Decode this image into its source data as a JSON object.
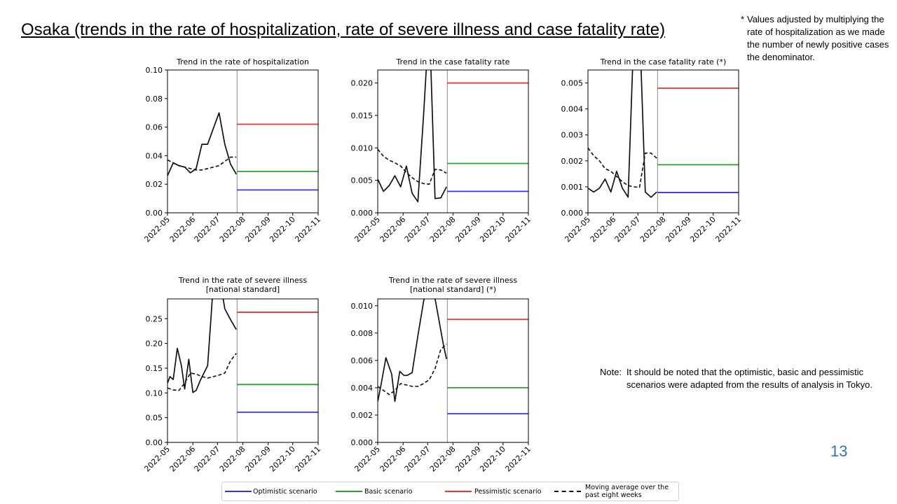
{
  "title": "Osaka (trends in the rate of hospitalization, rate of severe illness and case fatality rate)",
  "footnote": {
    "marker": "*",
    "text": "Values adjusted by multiplying the rate of hospitalization as we made the number of newly positive cases the denominator."
  },
  "note": {
    "label": "Note:",
    "text": "It should be noted that the optimistic, basic and pessimistic scenarios were adapted from the results of analysis in Tokyo."
  },
  "page_number": "13",
  "colors": {
    "optimistic": "#3333ee",
    "basic": "#2ca02c",
    "pessimistic": "#ee3333",
    "actual": "#111111",
    "moving_average": "#111111",
    "accent": "#2e75b6"
  },
  "legend": [
    {
      "key": "optimistic",
      "label": "Optimistic scenario",
      "style": "solid"
    },
    {
      "key": "basic",
      "label": "Basic scenario",
      "style": "solid"
    },
    {
      "key": "pessimistic",
      "label": "Pessimistic scenario",
      "style": "solid"
    },
    {
      "key": "moving_average",
      "label": "Moving average over the past eight weeks",
      "style": "dashed"
    }
  ],
  "chart_data": [
    {
      "type": "line",
      "title": [
        "Trend in the rate of hospitalization"
      ],
      "x_tick_labels": [
        "2022-05",
        "2022-06",
        "2022-07",
        "2022-08",
        "2022-09",
        "2022-10",
        "2022-11"
      ],
      "x_range": [
        "2022-05-01",
        "2022-11-01"
      ],
      "divider_date": "2022-07-25",
      "ylim": [
        0,
        0.1
      ],
      "y_ticks": [
        "0.00",
        "0.02",
        "0.04",
        "0.06",
        "0.08",
        "0.10"
      ],
      "series": [
        {
          "name": "Actual",
          "style": "solid",
          "x": [
            "2022-05-01",
            "2022-05-08",
            "2022-05-15",
            "2022-05-22",
            "2022-05-29",
            "2022-06-05",
            "2022-06-12",
            "2022-06-19",
            "2022-06-26",
            "2022-07-03",
            "2022-07-10",
            "2022-07-17",
            "2022-07-24"
          ],
          "y": [
            0.026,
            0.035,
            0.033,
            0.032,
            0.028,
            0.031,
            0.048,
            0.048,
            0.059,
            0.07,
            0.048,
            0.034,
            0.027
          ]
        },
        {
          "name": "Moving average over the past eight weeks",
          "style": "dashed",
          "x": [
            "2022-05-01",
            "2022-05-08",
            "2022-05-15",
            "2022-05-22",
            "2022-05-29",
            "2022-06-05",
            "2022-06-12",
            "2022-06-19",
            "2022-06-26",
            "2022-07-03",
            "2022-07-10",
            "2022-07-17",
            "2022-07-24"
          ],
          "y": [
            0.037,
            0.035,
            0.033,
            0.032,
            0.031,
            0.03,
            0.03,
            0.031,
            0.032,
            0.033,
            0.036,
            0.039,
            0.039
          ]
        }
      ],
      "scenarios": {
        "optimistic": 0.016,
        "basic": 0.029,
        "pessimistic": 0.062
      }
    },
    {
      "type": "line",
      "title": [
        "Trend in the case fatality rate"
      ],
      "x_tick_labels": [
        "2022-05",
        "2022-06",
        "2022-07",
        "2022-08",
        "2022-09",
        "2022-10",
        "2022-11"
      ],
      "x_range": [
        "2022-05-01",
        "2022-11-01"
      ],
      "divider_date": "2022-07-25",
      "ylim": [
        0,
        0.022
      ],
      "y_ticks": [
        "0.000",
        "0.005",
        "0.010",
        "0.015",
        "0.020"
      ],
      "series": [
        {
          "name": "Actual",
          "style": "solid",
          "x": [
            "2022-05-01",
            "2022-05-08",
            "2022-05-15",
            "2022-05-22",
            "2022-05-29",
            "2022-06-05",
            "2022-06-12",
            "2022-06-19",
            "2022-06-26",
            "2022-07-03",
            "2022-07-10",
            "2022-07-17",
            "2022-07-24"
          ],
          "y": [
            0.0052,
            0.0033,
            0.0042,
            0.0057,
            0.004,
            0.0072,
            0.003,
            0.0017,
            0.015,
            0.03,
            0.0022,
            0.0023,
            0.004
          ]
        },
        {
          "name": "Moving average over the past eight weeks",
          "style": "dashed",
          "x": [
            "2022-05-01",
            "2022-05-08",
            "2022-05-15",
            "2022-05-22",
            "2022-05-29",
            "2022-06-05",
            "2022-06-12",
            "2022-06-19",
            "2022-06-26",
            "2022-07-03",
            "2022-07-10",
            "2022-07-17",
            "2022-07-24"
          ],
          "y": [
            0.0098,
            0.0087,
            0.0081,
            0.0077,
            0.0072,
            0.0062,
            0.0054,
            0.0048,
            0.0045,
            0.0044,
            0.0067,
            0.0066,
            0.0061
          ]
        }
      ],
      "scenarios": {
        "optimistic": 0.0033,
        "basic": 0.0076,
        "pessimistic": 0.02
      }
    },
    {
      "type": "line",
      "title": [
        "Trend in the case fatality rate (*)"
      ],
      "x_tick_labels": [
        "2022-05",
        "2022-06",
        "2022-07",
        "2022-08",
        "2022-09",
        "2022-10",
        "2022-11"
      ],
      "x_range": [
        "2022-05-01",
        "2022-11-01"
      ],
      "divider_date": "2022-07-25",
      "ylim": [
        0,
        0.0055
      ],
      "y_ticks": [
        "0.000",
        "0.001",
        "0.002",
        "0.003",
        "0.004",
        "0.005"
      ],
      "series": [
        {
          "name": "Actual",
          "style": "solid",
          "x": [
            "2022-05-01",
            "2022-05-08",
            "2022-05-15",
            "2022-05-22",
            "2022-05-29",
            "2022-06-05",
            "2022-06-12",
            "2022-06-19",
            "2022-06-26",
            "2022-07-03",
            "2022-07-10",
            "2022-07-17",
            "2022-07-24"
          ],
          "y": [
            0.00095,
            0.0008,
            0.00095,
            0.0013,
            0.0008,
            0.0016,
            0.00095,
            0.0006,
            0.0069,
            0.0073,
            0.0008,
            0.0006,
            0.0008
          ]
        },
        {
          "name": "Moving average over the past eight weeks",
          "style": "dashed",
          "x": [
            "2022-05-01",
            "2022-05-08",
            "2022-05-15",
            "2022-05-22",
            "2022-05-29",
            "2022-06-05",
            "2022-06-12",
            "2022-06-19",
            "2022-06-26",
            "2022-07-03",
            "2022-07-10",
            "2022-07-17",
            "2022-07-24"
          ],
          "y": [
            0.0025,
            0.0022,
            0.002,
            0.0017,
            0.0016,
            0.0014,
            0.0012,
            0.00105,
            0.001,
            0.00098,
            0.0023,
            0.0023,
            0.0021
          ]
        }
      ],
      "scenarios": {
        "optimistic": 0.00078,
        "basic": 0.00185,
        "pessimistic": 0.0048
      }
    },
    {
      "type": "line",
      "title": [
        "Trend in the rate of severe illness",
        "[national standard]"
      ],
      "x_tick_labels": [
        "2022-05",
        "2022-06",
        "2022-07",
        "2022-08",
        "2022-09",
        "2022-10",
        "2022-11"
      ],
      "x_range": [
        "2022-05-01",
        "2022-11-01"
      ],
      "divider_date": "2022-07-25",
      "ylim": [
        0,
        0.29
      ],
      "y_ticks": [
        "0.00",
        "0.05",
        "0.10",
        "0.15",
        "0.20",
        "0.25"
      ],
      "series": [
        {
          "name": "Actual",
          "style": "solid",
          "x": [
            "2022-05-01",
            "2022-05-04",
            "2022-05-08",
            "2022-05-13",
            "2022-05-18",
            "2022-05-22",
            "2022-05-27",
            "2022-06-01",
            "2022-06-05",
            "2022-06-10",
            "2022-06-19",
            "2022-06-26",
            "2022-07-03",
            "2022-07-10",
            "2022-07-17",
            "2022-07-24"
          ],
          "y": [
            0.12,
            0.133,
            0.127,
            0.19,
            0.155,
            0.108,
            0.168,
            0.101,
            0.105,
            0.125,
            0.155,
            0.32,
            0.34,
            0.27,
            0.248,
            0.228
          ]
        },
        {
          "name": "Moving average over the past eight weeks",
          "style": "dashed",
          "x": [
            "2022-05-01",
            "2022-05-08",
            "2022-05-15",
            "2022-05-22",
            "2022-05-29",
            "2022-06-05",
            "2022-06-12",
            "2022-06-19",
            "2022-06-26",
            "2022-07-03",
            "2022-07-10",
            "2022-07-17",
            "2022-07-24"
          ],
          "y": [
            0.11,
            0.106,
            0.105,
            0.12,
            0.14,
            0.138,
            0.133,
            0.13,
            0.133,
            0.136,
            0.14,
            0.165,
            0.18
          ]
        }
      ],
      "scenarios": {
        "optimistic": 0.061,
        "basic": 0.117,
        "pessimistic": 0.263
      }
    },
    {
      "type": "line",
      "title": [
        "Trend in the rate of severe illness",
        "[national standard] (*)"
      ],
      "x_tick_labels": [
        "2022-05",
        "2022-06",
        "2022-07",
        "2022-08",
        "2022-09",
        "2022-10",
        "2022-11"
      ],
      "x_range": [
        "2022-05-01",
        "2022-11-01"
      ],
      "divider_date": "2022-07-25",
      "ylim": [
        0,
        0.0105
      ],
      "y_ticks": [
        "0.000",
        "0.002",
        "0.004",
        "0.006",
        "0.008",
        "0.010"
      ],
      "series": [
        {
          "name": "Actual",
          "style": "solid",
          "x": [
            "2022-05-01",
            "2022-05-05",
            "2022-05-11",
            "2022-05-18",
            "2022-05-22",
            "2022-05-28",
            "2022-06-02",
            "2022-06-06",
            "2022-06-12",
            "2022-06-19",
            "2022-06-26",
            "2022-07-01",
            "2022-07-07",
            "2022-07-14",
            "2022-07-20",
            "2022-07-24"
          ],
          "y": [
            0.003,
            0.0042,
            0.0062,
            0.005,
            0.003,
            0.0052,
            0.0049,
            0.0049,
            0.0051,
            0.0078,
            0.0103,
            0.0118,
            0.0115,
            0.0092,
            0.0072,
            0.0061
          ]
        },
        {
          "name": "Moving average over the past eight weeks",
          "style": "dashed",
          "x": [
            "2022-05-01",
            "2022-05-08",
            "2022-05-15",
            "2022-05-22",
            "2022-05-29",
            "2022-06-05",
            "2022-06-12",
            "2022-06-19",
            "2022-06-26",
            "2022-07-03",
            "2022-07-10",
            "2022-07-17",
            "2022-07-24"
          ],
          "y": [
            0.0041,
            0.0038,
            0.0035,
            0.0038,
            0.0043,
            0.0042,
            0.0041,
            0.0041,
            0.0043,
            0.0046,
            0.0054,
            0.0068,
            0.0072
          ]
        }
      ],
      "scenarios": {
        "optimistic": 0.0021,
        "basic": 0.004,
        "pessimistic": 0.009
      }
    }
  ]
}
